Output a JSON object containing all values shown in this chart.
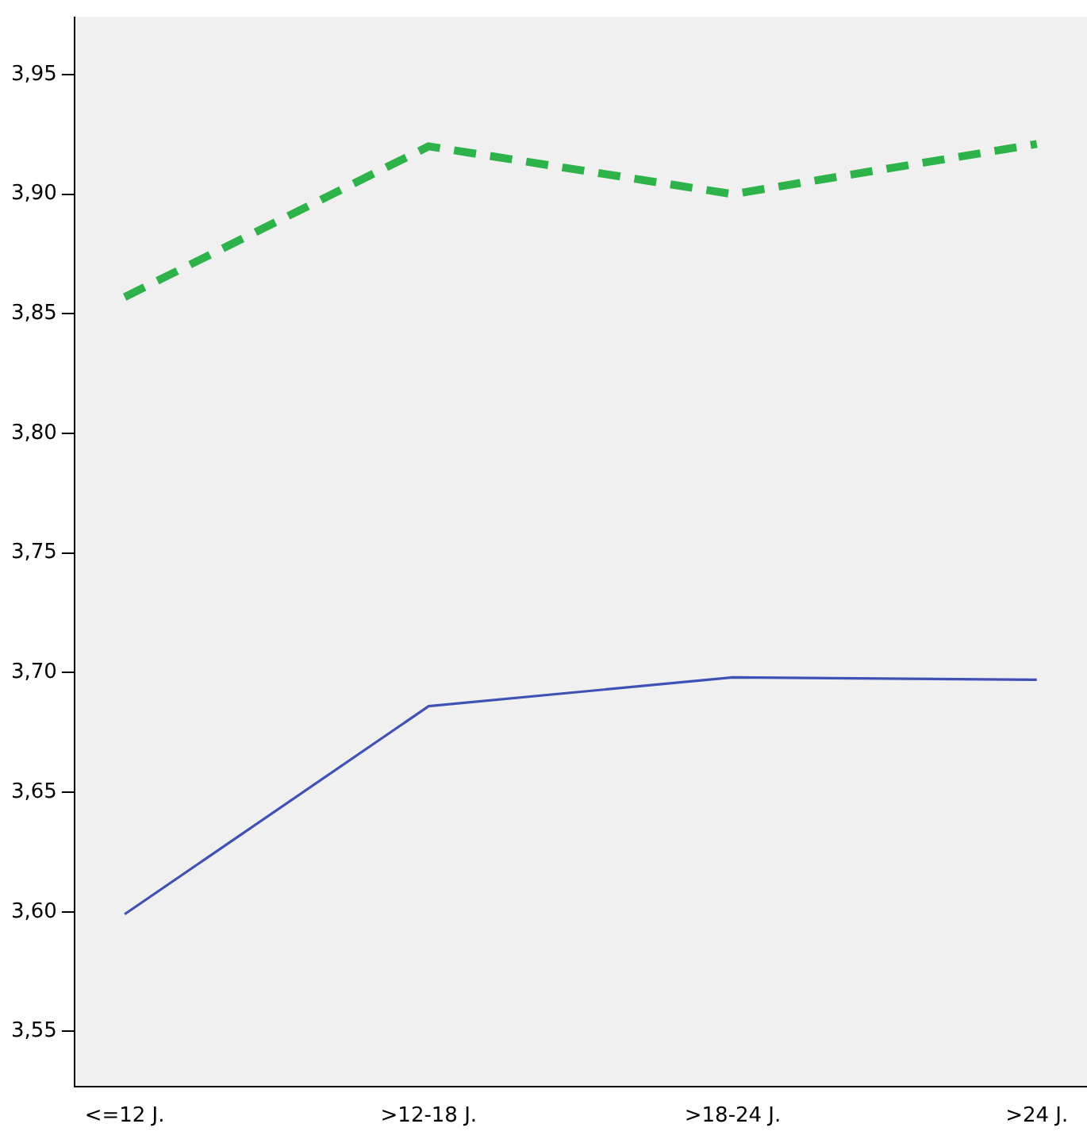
{
  "chart_data": {
    "type": "line",
    "categories": [
      "<=12 J.",
      ">12-18 J.",
      ">18-24 J.",
      ">24 J."
    ],
    "series": [
      {
        "color": "#2eb34a",
        "line_style": "dashed",
        "values": [
          3.857,
          3.92,
          3.9,
          3.921
        ]
      },
      {
        "color": "#3f51b5",
        "line_style": "solid",
        "values": [
          3.599,
          3.686,
          3.698,
          3.697
        ]
      }
    ],
    "ylim": [
      3.527,
      3.974
    ],
    "yticks": [
      {
        "value": 3.55,
        "label": "3,55"
      },
      {
        "value": 3.6,
        "label": "3,60"
      },
      {
        "value": 3.65,
        "label": "3,65"
      },
      {
        "value": 3.7,
        "label": "3,70"
      },
      {
        "value": 3.75,
        "label": "3,75"
      },
      {
        "value": 3.8,
        "label": "3,80"
      },
      {
        "value": 3.85,
        "label": "3,85"
      },
      {
        "value": 3.9,
        "label": "3,90"
      },
      {
        "value": 3.95,
        "label": "3,95"
      }
    ],
    "grid": false,
    "legend": false,
    "marker": "none"
  }
}
